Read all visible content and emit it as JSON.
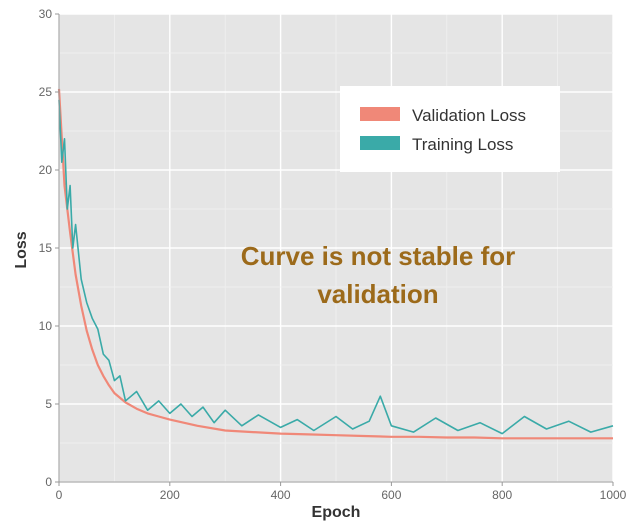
{
  "chart_data": {
    "type": "line",
    "title": "",
    "xlabel": "Epoch",
    "ylabel": "Loss",
    "xlim": [
      0,
      1000
    ],
    "ylim": [
      0,
      30
    ],
    "xticks": [
      0,
      200,
      400,
      600,
      800,
      1000
    ],
    "yticks": [
      0,
      5,
      10,
      15,
      20,
      25,
      30
    ],
    "grid": true,
    "legend_position": "top-right",
    "series": [
      {
        "name": "Validation Loss",
        "color": "#f08878",
        "x": [
          0,
          10,
          20,
          30,
          40,
          50,
          60,
          70,
          80,
          90,
          100,
          120,
          140,
          160,
          180,
          200,
          250,
          300,
          350,
          400,
          450,
          500,
          550,
          600,
          650,
          700,
          750,
          800,
          850,
          900,
          950,
          1000
        ],
        "y": [
          25.2,
          19.0,
          16.0,
          13.3,
          11.3,
          9.7,
          8.5,
          7.5,
          6.8,
          6.2,
          5.7,
          5.1,
          4.7,
          4.4,
          4.2,
          4.0,
          3.6,
          3.3,
          3.2,
          3.1,
          3.05,
          3.0,
          2.95,
          2.9,
          2.9,
          2.85,
          2.85,
          2.8,
          2.8,
          2.8,
          2.8,
          2.8
        ]
      },
      {
        "name": "Training Loss",
        "color": "#3aaaa8",
        "x": [
          0,
          5,
          10,
          15,
          20,
          25,
          30,
          40,
          50,
          60,
          70,
          80,
          90,
          100,
          110,
          120,
          140,
          160,
          180,
          200,
          220,
          240,
          260,
          280,
          300,
          330,
          360,
          400,
          430,
          460,
          500,
          530,
          560,
          580,
          600,
          640,
          680,
          720,
          760,
          800,
          840,
          880,
          920,
          960,
          1000
        ],
        "y": [
          24.5,
          20.5,
          22.0,
          17.5,
          19.0,
          15.0,
          16.5,
          13.0,
          11.5,
          10.5,
          9.8,
          8.2,
          7.8,
          6.5,
          6.8,
          5.2,
          5.8,
          4.6,
          5.2,
          4.4,
          5.0,
          4.2,
          4.8,
          3.8,
          4.6,
          3.6,
          4.3,
          3.5,
          4.0,
          3.3,
          4.2,
          3.4,
          3.9,
          5.5,
          3.6,
          3.2,
          4.1,
          3.3,
          3.8,
          3.1,
          4.2,
          3.4,
          3.9,
          3.2,
          3.6
        ]
      }
    ]
  },
  "annotation": {
    "line1": "Curve is not stable for",
    "line2": "validation"
  }
}
